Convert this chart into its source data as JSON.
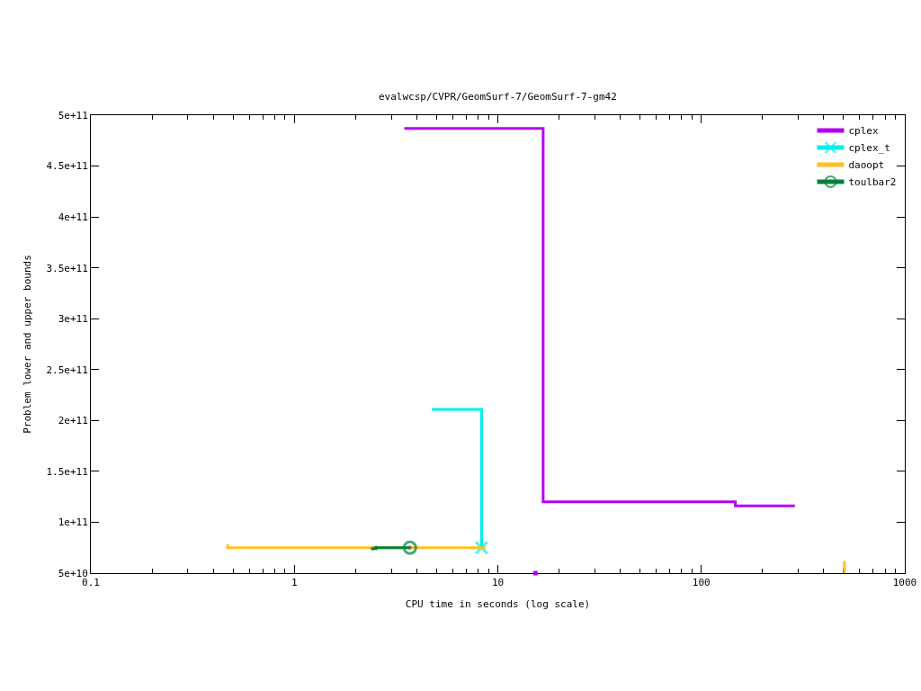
{
  "chart_data": {
    "type": "step",
    "title": "evalwcsp/CVPR/GeomSurf-7/GeomSurf-7-gm42",
    "xlabel": "CPU time in seconds (log scale)",
    "ylabel": "Problem lower and upper bounds",
    "log": "x",
    "xlim": [
      0.1,
      1000
    ],
    "ylim": [
      50000000000,
      500000000000
    ],
    "xticks": [
      0.1,
      {
        "value": 0.2,
        "label": null
      },
      {
        "value": 0.3,
        "label": null
      },
      {
        "value": 0.4,
        "label": null
      },
      {
        "value": 0.5,
        "label": null
      },
      {
        "value": 0.6,
        "label": null
      },
      {
        "value": 0.7,
        "label": null
      },
      {
        "value": 0.8,
        "label": null
      },
      {
        "value": 0.9,
        "label": null
      },
      1,
      {
        "value": 2,
        "label": null
      },
      {
        "value": 3,
        "label": null
      },
      {
        "value": 4,
        "label": null
      },
      {
        "value": 5,
        "label": null
      },
      {
        "value": 6,
        "label": null
      },
      {
        "value": 7,
        "label": null
      },
      {
        "value": 8,
        "label": null
      },
      {
        "value": 9,
        "label": null
      },
      10,
      {
        "value": 20,
        "label": null
      },
      {
        "value": 30,
        "label": null
      },
      {
        "value": 40,
        "label": null
      },
      {
        "value": 50,
        "label": null
      },
      {
        "value": 60,
        "label": null
      },
      {
        "value": 70,
        "label": null
      },
      {
        "value": 80,
        "label": null
      },
      {
        "value": 90,
        "label": null
      },
      100,
      {
        "value": 200,
        "label": null
      },
      {
        "value": 300,
        "label": null
      },
      {
        "value": 400,
        "label": null
      },
      {
        "value": 500,
        "label": null
      },
      {
        "value": 600,
        "label": null
      },
      {
        "value": 700,
        "label": null
      },
      {
        "value": 800,
        "label": null
      },
      {
        "value": 900,
        "label": null
      },
      1000
    ],
    "yticks": [
      {
        "value": 50000000000,
        "label": "5e+10"
      },
      {
        "value": 100000000000,
        "label": "1e+11"
      },
      {
        "value": 150000000000,
        "label": "1.5e+11"
      },
      {
        "value": 200000000000,
        "label": "2e+11"
      },
      {
        "value": 250000000000,
        "label": "2.5e+11"
      },
      {
        "value": 300000000000,
        "label": "3e+11"
      },
      {
        "value": 350000000000,
        "label": "3.5e+11"
      },
      {
        "value": 400000000000,
        "label": "4e+11"
      },
      {
        "value": 450000000000,
        "label": "4.5e+11"
      },
      {
        "value": 500000000000,
        "label": "5e+11"
      }
    ],
    "legend": "top right",
    "series": [
      {
        "name": "cplex",
        "color": "#b400f0",
        "x": [
          3.47,
          16.7,
          147,
          284
        ],
        "values": [
          487000000000,
          120000000000,
          116000000000,
          115000000000
        ]
      },
      {
        "name": "cplex_t",
        "color": "#00eeee",
        "marker": "cross",
        "x": [
          4.74,
          8.32
        ],
        "values": [
          211000000000,
          75000000000
        ]
      },
      {
        "name": "daoopt",
        "color": "#ffc020",
        "x": [
          0.463,
          0.47,
          8.73
        ],
        "values": [
          77000000000,
          75000000000,
          75000000000
        ]
      },
      {
        "name": "toulbar2",
        "color": "#008040",
        "marker": "circle",
        "x": [
          2.42,
          2.52,
          3.7
        ],
        "values": [
          74000000000,
          75000000000,
          75000000000
        ]
      },
      {
        "color": "#b400f0",
        "type": "scatter",
        "marker": "square",
        "x": [
          15.3
        ],
        "values": [
          50000000000
        ]
      },
      {
        "color": "#ffc020",
        "type": "bar",
        "x": [
          505
        ],
        "base": [
          50000000000
        ],
        "values": [
          12000000000
        ]
      }
    ]
  }
}
